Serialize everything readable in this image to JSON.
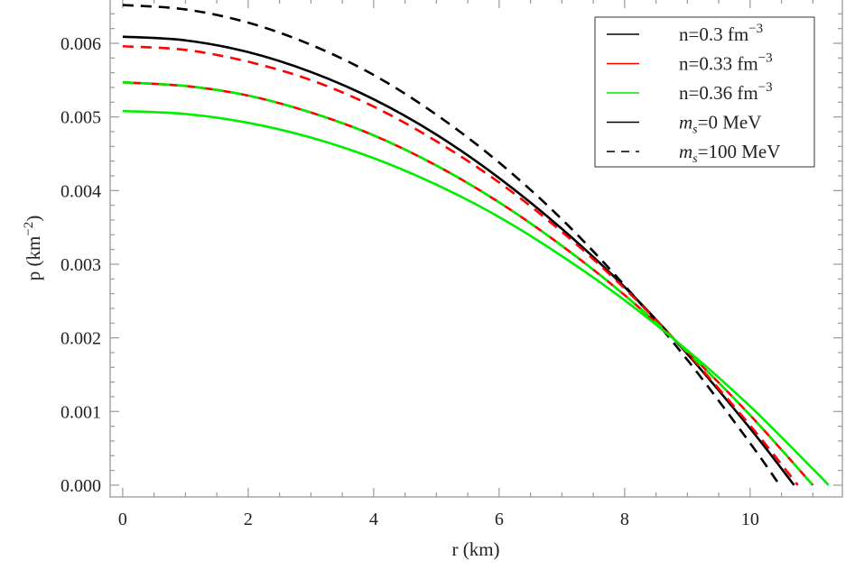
{
  "chart_data": {
    "type": "line",
    "xlabel": "r (km)",
    "ylabel": "p (km",
    "ylabel_sup": "−2",
    "ylabel_close": ")",
    "xlim": [
      -0.2,
      11.47
    ],
    "ylim": [
      -0.00016,
      0.0066
    ],
    "xticks": [
      0,
      2,
      4,
      6,
      8,
      10
    ],
    "xtick_labels": [
      "0",
      "2",
      "4",
      "6",
      "8",
      "10"
    ],
    "yticks": [
      0,
      0.001,
      0.002,
      0.003,
      0.004,
      0.005,
      0.006
    ],
    "ytick_labels": [
      "0.000",
      "0.001",
      "0.002",
      "0.003",
      "0.004",
      "0.005",
      "0.006"
    ],
    "grid": false,
    "legend_placement": "top-right",
    "legend": [
      {
        "text": "n=0.3 fm",
        "sup": "−3",
        "color": "#000000",
        "dash": false,
        "italic_prefix": ""
      },
      {
        "text": "n=0.33 fm",
        "sup": "−3",
        "color": "#ff0000",
        "dash": false,
        "italic_prefix": ""
      },
      {
        "text": "n=0.36 fm",
        "sup": "−3",
        "color": "#00ee00",
        "dash": false,
        "italic_prefix": ""
      },
      {
        "text": "=0 MeV",
        "sup": "",
        "color": "#000000",
        "dash": false,
        "italic_prefix": "m",
        "italic_sub": "s"
      },
      {
        "text": "=100 MeV",
        "sup": "",
        "color": "#000000",
        "dash": true,
        "italic_prefix": "m",
        "italic_sub": "s"
      }
    ],
    "series": [
      {
        "density": "n=0.3",
        "ms": "100 MeV",
        "color": "#000000",
        "dash": true,
        "x": [
          0,
          1,
          2,
          3,
          4,
          5,
          6,
          7,
          8,
          9,
          10,
          10.47
        ],
        "y": [
          0.00652,
          0.00646,
          0.00628,
          0.00598,
          0.00557,
          0.00503,
          0.00438,
          0.00361,
          0.00271,
          0.0017,
          0.00057,
          0
        ]
      },
      {
        "density": "n=0.3",
        "ms": "0 MeV",
        "color": "#000000",
        "dash": false,
        "x": [
          0,
          1,
          2,
          3,
          4,
          5,
          6,
          7,
          8,
          9,
          10,
          10.7
        ],
        "y": [
          0.00609,
          0.00604,
          0.00588,
          0.00561,
          0.00524,
          0.00476,
          0.00417,
          0.00348,
          0.00269,
          0.00178,
          0.00077,
          0
        ]
      },
      {
        "density": "n=0.33",
        "ms": "100 MeV",
        "color": "#ff0000",
        "dash": true,
        "x": [
          0,
          1,
          2,
          3,
          4,
          5,
          6,
          7,
          8,
          9,
          10,
          10.76
        ],
        "y": [
          0.00596,
          0.00591,
          0.00575,
          0.0055,
          0.00514,
          0.00467,
          0.00411,
          0.00344,
          0.00267,
          0.00179,
          0.00081,
          0
        ]
      },
      {
        "density": "n=0.33",
        "ms": "0 MeV",
        "color": "#ff0000",
        "dash": false,
        "x": [
          0,
          1,
          2,
          3,
          4,
          5,
          6,
          7,
          8,
          9,
          10,
          11
        ],
        "y": [
          0.00547,
          0.00542,
          0.00529,
          0.00506,
          0.00475,
          0.00434,
          0.00384,
          0.00325,
          0.00258,
          0.00181,
          0.00095,
          0
        ]
      },
      {
        "density": "n=0.36",
        "ms": "100 MeV",
        "color": "#00ee00",
        "dash": true,
        "x": [
          0,
          1,
          2,
          3,
          4,
          5,
          6,
          7,
          8,
          9,
          10,
          11
        ],
        "y": [
          0.00547,
          0.00542,
          0.00529,
          0.00506,
          0.00475,
          0.00434,
          0.00384,
          0.00325,
          0.00258,
          0.00181,
          0.00095,
          0
        ]
      },
      {
        "density": "n=0.36",
        "ms": "0 MeV",
        "color": "#00ee00",
        "dash": false,
        "x": [
          0,
          1,
          2,
          3,
          4,
          5,
          6,
          7,
          8,
          9,
          10,
          11,
          11.25
        ],
        "y": [
          0.00508,
          0.00504,
          0.00492,
          0.00472,
          0.00444,
          0.00408,
          0.00364,
          0.00311,
          0.00251,
          0.00183,
          0.00107,
          0.00022,
          0
        ]
      }
    ]
  }
}
